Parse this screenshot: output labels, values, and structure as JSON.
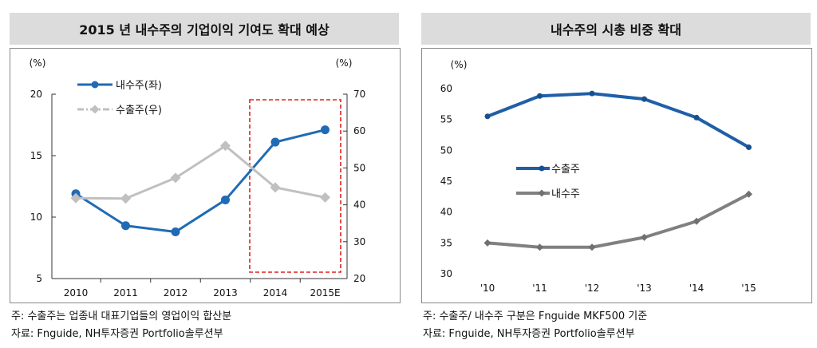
{
  "left": {
    "title": "2015 년 내수주의 기업이익 기여도 확대 예상",
    "unit_left": "(%)",
    "unit_right": "(%)",
    "notes": [
      "주: 수출주는 업종내 대표기업들의 영업이익 합산분",
      "자료: Fnguide, NH투자증권 Portfolio솔루션부"
    ]
  },
  "right": {
    "title": "내수주의 시총 비중 확대",
    "unit_left": "(%)",
    "notes": [
      "주: 수출주/ 내수주 구분은 Fnguide MKF500 기준",
      "자료: Fnguide, NH투자증권 Portfolio솔루션부"
    ]
  },
  "colors": {
    "blue": "#1f6bb5",
    "lightgray": "#c0c0c0",
    "darkgray": "#808080",
    "red": "#e02020"
  },
  "chart_data": [
    {
      "type": "line",
      "title": "2015 년 내수주의 기업이익 기여도 확대 예상",
      "categories": [
        "2010",
        "2011",
        "2012",
        "2013",
        "2014",
        "2015E"
      ],
      "y_left": {
        "label": "(%)",
        "ylim": [
          5,
          20
        ],
        "ticks": [
          5,
          10,
          15,
          20
        ]
      },
      "y_right": {
        "label": "(%)",
        "ylim": [
          20,
          70
        ],
        "ticks": [
          20,
          30,
          40,
          50,
          60,
          70
        ]
      },
      "series": [
        {
          "name": "내수주(좌)",
          "axis": "left",
          "color": "#1f6bb5",
          "marker": "circle",
          "values": [
            11.9,
            9.3,
            8.8,
            11.4,
            16.1,
            17.1
          ]
        },
        {
          "name": "수출주(우)",
          "axis": "right",
          "color": "#c0c0c0",
          "marker": "diamond",
          "dash": true,
          "values": [
            41.8,
            41.7,
            47.3,
            56.0,
            44.7,
            42.0
          ]
        }
      ],
      "highlight": {
        "from": "2014",
        "to": "2015E",
        "style": "red dashed box"
      },
      "legend": "top-left"
    },
    {
      "type": "line",
      "title": "내수주의 시총 비중 확대",
      "categories": [
        "'10",
        "'11",
        "'12",
        "'13",
        "'14",
        "'15"
      ],
      "y_left": {
        "label": "(%)",
        "ylim": [
          30,
          60
        ],
        "ticks": [
          30,
          35,
          40,
          45,
          50,
          55,
          60
        ]
      },
      "series": [
        {
          "name": "수출주",
          "color": "#1f5fa8",
          "marker": "circle",
          "values": [
            55.5,
            58.8,
            59.2,
            58.3,
            55.3,
            50.5
          ]
        },
        {
          "name": "내수주",
          "color": "#808080",
          "marker": "diamond",
          "values": [
            35.0,
            34.3,
            34.3,
            35.9,
            38.5,
            42.9
          ]
        }
      ],
      "legend": "center-left"
    }
  ]
}
